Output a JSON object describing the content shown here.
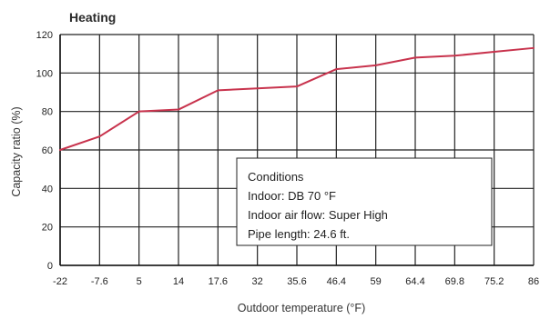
{
  "chart_data": {
    "type": "line",
    "title": "Heating",
    "xlabel": "Outdoor temperature (°F)",
    "ylabel": "Capacity ratio (%)",
    "ylim": [
      0,
      120
    ],
    "yticks": [
      0,
      20,
      40,
      60,
      80,
      100,
      120
    ],
    "categories": [
      "-22",
      "-7.6",
      "5",
      "14",
      "17.6",
      "32",
      "35.6",
      "46.4",
      "59",
      "64.4",
      "69.8",
      "75.2",
      "86"
    ],
    "series": [
      {
        "values": [
          60,
          67,
          80,
          81,
          91,
          92,
          93,
          102,
          104,
          108,
          109,
          111,
          113
        ],
        "color": "#c8334d"
      }
    ],
    "grid": true,
    "conditions": {
      "heading": "Conditions",
      "indoor": "Indoor: DB 70 °F",
      "air_flow": "Indoor air flow: Super High",
      "pipe_length": "Pipe length: 24.6 ft."
    }
  }
}
